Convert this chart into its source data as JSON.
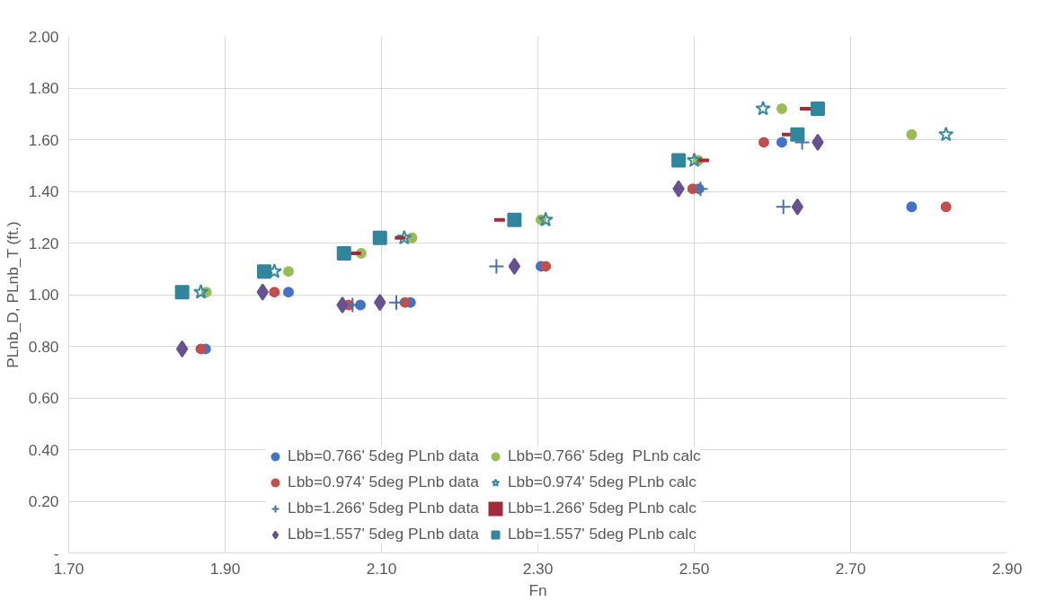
{
  "chart_data": {
    "type": "scatter",
    "xlabel": "Fn",
    "ylabel": "PLnb_D, PLnb_T (ft.)",
    "xlim": [
      1.7,
      2.9
    ],
    "ylim": [
      0,
      2
    ],
    "xticks": [
      {
        "value": 1.7,
        "label": "1.70"
      },
      {
        "value": 1.9,
        "label": "1.90"
      },
      {
        "value": 2.1,
        "label": "2.10"
      },
      {
        "value": 2.3,
        "label": "2.30"
      },
      {
        "value": 2.5,
        "label": "2.50"
      },
      {
        "value": 2.7,
        "label": "2.70"
      },
      {
        "value": 2.9,
        "label": "2.90"
      }
    ],
    "yticks": [
      {
        "value": 0,
        "label": "-"
      },
      {
        "value": 0.2,
        "label": "0.20"
      },
      {
        "value": 0.4,
        "label": "0.40"
      },
      {
        "value": 0.6,
        "label": "0.60"
      },
      {
        "value": 0.8,
        "label": "0.80"
      },
      {
        "value": 1.0,
        "label": "1.00"
      },
      {
        "value": 1.2,
        "label": "1.20"
      },
      {
        "value": 1.4,
        "label": "1.40"
      },
      {
        "value": 1.6,
        "label": "1.60"
      },
      {
        "value": 1.8,
        "label": "1.80"
      },
      {
        "value": 2.0,
        "label": "2.00"
      }
    ],
    "grid": true,
    "legend": "bottom",
    "series": [
      {
        "name": "Lbb=0.766' 5deg PLnb data",
        "color": "#4472c4",
        "marker": "circle",
        "x": [
          1.875,
          1.981,
          2.073,
          2.137,
          2.304,
          2.506,
          2.612,
          2.778
        ],
        "values": [
          0.79,
          1.01,
          0.96,
          0.97,
          1.11,
          1.41,
          1.59,
          1.34
        ]
      },
      {
        "name": "Lbb=0.974' 5deg PLnb data",
        "color": "#c0504d",
        "marker": "circle",
        "x": [
          1.869,
          1.963,
          2.058,
          2.13,
          2.31,
          2.498,
          2.589,
          2.822
        ],
        "values": [
          0.79,
          1.01,
          0.96,
          0.97,
          1.11,
          1.41,
          1.59,
          1.34
        ]
      },
      {
        "name": "Lbb=1.266' 5deg PLnb data",
        "color": "#4f6fa8",
        "marker": "cross",
        "x": [
          2.063,
          2.119,
          2.247,
          2.508,
          2.614,
          2.638
        ],
        "values": [
          0.96,
          0.97,
          1.11,
          1.41,
          1.34,
          1.59
        ]
      },
      {
        "name": "Lbb=1.557' 5deg PLnb data",
        "color": "#65528f",
        "marker": "diamond",
        "x": [
          1.845,
          1.948,
          2.05,
          2.098,
          2.27,
          2.48,
          2.632,
          2.658
        ],
        "values": [
          0.79,
          1.01,
          0.96,
          0.97,
          1.11,
          1.41,
          1.34,
          1.59
        ]
      },
      {
        "name": "Lbb=0.766' 5deg  PLnb calc",
        "color": "#9bbb59",
        "marker": "circle",
        "x": [
          1.876,
          1.981,
          2.074,
          2.139,
          2.304,
          2.505,
          2.612,
          2.778
        ],
        "values": [
          1.01,
          1.09,
          1.16,
          1.22,
          1.29,
          1.52,
          1.72,
          1.62
        ]
      },
      {
        "name": "Lbb=0.974' 5deg PLnb calc",
        "color": "#3a8a9c",
        "marker": "star",
        "x": [
          1.869,
          1.963,
          2.129,
          2.31,
          2.5,
          2.588,
          2.822
        ],
        "values": [
          1.01,
          1.09,
          1.22,
          1.29,
          1.52,
          1.72,
          1.62
        ]
      },
      {
        "name": "Lbb=1.266' 5deg PLnb calc",
        "color": "#a32a3a",
        "x": [
          2.067,
          2.124,
          2.251,
          2.512,
          2.619,
          2.642
        ],
        "values": [
          1.16,
          1.22,
          1.29,
          1.52,
          1.62,
          1.72
        ]
      },
      {
        "name": "Lbb=1.557' 5deg PLnb calc",
        "color": "#31859c",
        "marker": "square",
        "x": [
          1.845,
          1.95,
          2.052,
          2.098,
          2.27,
          2.48,
          2.632,
          2.658
        ],
        "values": [
          1.01,
          1.09,
          1.16,
          1.22,
          1.29,
          1.52,
          1.62,
          1.72
        ]
      }
    ]
  }
}
